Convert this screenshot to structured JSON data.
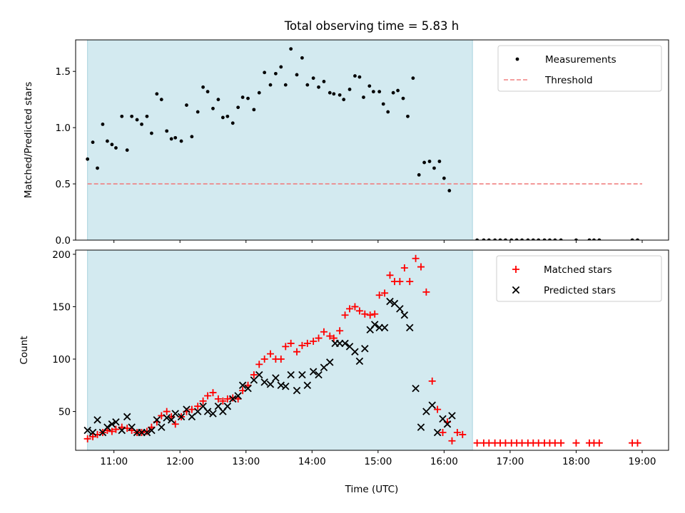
{
  "figure": {
    "title": "Total observing time = 5.83 h",
    "xlabel": "Time (UTC)"
  },
  "chart_data": [
    {
      "type": "scatter",
      "ylabel": "Matched/Predicted stars",
      "xlim": [
        10.42,
        19.4
      ],
      "ylim": [
        0,
        1.78
      ],
      "yticks": [
        0.0,
        0.5,
        1.0,
        1.5
      ],
      "ytick_labels": [
        "0.0",
        "0.5",
        "1.0",
        "1.5"
      ],
      "shaded_span": {
        "x_start": 10.6,
        "x_end": 16.43,
        "color": "#d3eaf0"
      },
      "legend": {
        "position": "top-right",
        "entries": [
          "Measurements",
          "Threshold"
        ]
      },
      "threshold": {
        "name": "Threshold",
        "y": 0.5,
        "x_start": 10.6,
        "x_end": 19.0,
        "color": "#f08080"
      },
      "series": [
        {
          "name": "Measurements",
          "color": "#000000",
          "points": [
            [
              10.6,
              0.72
            ],
            [
              10.68,
              0.87
            ],
            [
              10.75,
              0.64
            ],
            [
              10.83,
              1.03
            ],
            [
              10.9,
              0.88
            ],
            [
              10.97,
              0.85
            ],
            [
              11.03,
              0.82
            ],
            [
              11.12,
              1.1
            ],
            [
              11.2,
              0.8
            ],
            [
              11.27,
              1.1
            ],
            [
              11.35,
              1.07
            ],
            [
              11.42,
              1.03
            ],
            [
              11.5,
              1.1
            ],
            [
              11.57,
              0.95
            ],
            [
              11.65,
              1.3
            ],
            [
              11.72,
              1.25
            ],
            [
              11.8,
              0.97
            ],
            [
              11.87,
              0.9
            ],
            [
              11.93,
              0.91
            ],
            [
              12.02,
              0.88
            ],
            [
              12.1,
              1.2
            ],
            [
              12.18,
              0.92
            ],
            [
              12.27,
              1.14
            ],
            [
              12.35,
              1.36
            ],
            [
              12.42,
              1.32
            ],
            [
              12.5,
              1.17
            ],
            [
              12.58,
              1.25
            ],
            [
              12.65,
              1.09
            ],
            [
              12.72,
              1.1
            ],
            [
              12.8,
              1.04
            ],
            [
              12.88,
              1.18
            ],
            [
              12.95,
              1.27
            ],
            [
              13.03,
              1.26
            ],
            [
              13.12,
              1.16
            ],
            [
              13.2,
              1.31
            ],
            [
              13.28,
              1.49
            ],
            [
              13.37,
              1.38
            ],
            [
              13.45,
              1.48
            ],
            [
              13.53,
              1.54
            ],
            [
              13.6,
              1.38
            ],
            [
              13.68,
              1.7
            ],
            [
              13.77,
              1.47
            ],
            [
              13.85,
              1.62
            ],
            [
              13.93,
              1.38
            ],
            [
              14.02,
              1.44
            ],
            [
              14.1,
              1.36
            ],
            [
              14.18,
              1.41
            ],
            [
              14.27,
              1.31
            ],
            [
              14.33,
              1.3
            ],
            [
              14.42,
              1.29
            ],
            [
              14.48,
              1.25
            ],
            [
              14.57,
              1.34
            ],
            [
              14.65,
              1.46
            ],
            [
              14.72,
              1.45
            ],
            [
              14.78,
              1.27
            ],
            [
              14.87,
              1.37
            ],
            [
              14.93,
              1.32
            ],
            [
              15.02,
              1.32
            ],
            [
              15.08,
              1.21
            ],
            [
              15.15,
              1.14
            ],
            [
              15.23,
              1.31
            ],
            [
              15.3,
              1.33
            ],
            [
              15.38,
              1.26
            ],
            [
              15.45,
              1.1
            ],
            [
              15.53,
              1.44
            ],
            [
              15.62,
              0.58
            ],
            [
              15.7,
              0.69
            ],
            [
              15.78,
              0.7
            ],
            [
              15.85,
              0.64
            ],
            [
              15.93,
              0.7
            ],
            [
              16.0,
              0.55
            ],
            [
              16.08,
              0.44
            ],
            [
              16.5,
              0
            ],
            [
              16.6,
              0
            ],
            [
              16.68,
              0
            ],
            [
              16.77,
              0
            ],
            [
              16.85,
              0
            ],
            [
              16.93,
              0
            ],
            [
              17.02,
              0
            ],
            [
              17.1,
              0
            ],
            [
              17.18,
              0
            ],
            [
              17.27,
              0
            ],
            [
              17.35,
              0
            ],
            [
              17.43,
              0
            ],
            [
              17.52,
              0
            ],
            [
              17.6,
              0
            ],
            [
              17.68,
              0
            ],
            [
              17.77,
              0
            ],
            [
              18.0,
              0
            ],
            [
              18.2,
              0
            ],
            [
              18.27,
              0
            ],
            [
              18.35,
              0
            ],
            [
              18.85,
              0
            ],
            [
              18.93,
              0
            ]
          ]
        }
      ]
    },
    {
      "type": "scatter",
      "ylabel": "Count",
      "xlim": [
        10.42,
        19.4
      ],
      "ylim": [
        13,
        204
      ],
      "yticks": [
        50,
        100,
        150,
        200
      ],
      "ytick_labels": [
        "50",
        "100",
        "150",
        "200"
      ],
      "xticks": [
        11,
        12,
        13,
        14,
        15,
        16,
        17,
        18,
        19
      ],
      "xtick_labels": [
        "11:00",
        "12:00",
        "13:00",
        "14:00",
        "15:00",
        "16:00",
        "17:00",
        "18:00",
        "19:00"
      ],
      "shaded_span": {
        "x_start": 10.6,
        "x_end": 16.43,
        "color": "#d3eaf0"
      },
      "legend": {
        "position": "top-right",
        "entries": [
          "Matched stars",
          "Predicted stars"
        ]
      },
      "series": [
        {
          "name": "Matched stars",
          "marker": "plus",
          "color": "#ff0000",
          "points": [
            [
              10.6,
              24
            ],
            [
              10.68,
              26
            ],
            [
              10.75,
              28
            ],
            [
              10.83,
              30
            ],
            [
              10.9,
              32
            ],
            [
              10.97,
              31
            ],
            [
              11.03,
              33
            ],
            [
              11.12,
              35
            ],
            [
              11.2,
              34
            ],
            [
              11.27,
              32
            ],
            [
              11.35,
              30
            ],
            [
              11.42,
              30
            ],
            [
              11.5,
              31
            ],
            [
              11.57,
              35
            ],
            [
              11.65,
              40
            ],
            [
              11.72,
              46
            ],
            [
              11.8,
              50
            ],
            [
              11.87,
              45
            ],
            [
              11.93,
              38
            ],
            [
              12.02,
              45
            ],
            [
              12.1,
              50
            ],
            [
              12.18,
              52
            ],
            [
              12.27,
              55
            ],
            [
              12.35,
              60
            ],
            [
              12.42,
              65
            ],
            [
              12.5,
              68
            ],
            [
              12.58,
              62
            ],
            [
              12.65,
              60
            ],
            [
              12.72,
              62
            ],
            [
              12.8,
              63
            ],
            [
              12.88,
              62
            ],
            [
              12.95,
              70
            ],
            [
              13.03,
              75
            ],
            [
              13.12,
              85
            ],
            [
              13.2,
              95
            ],
            [
              13.28,
              100
            ],
            [
              13.37,
              105
            ],
            [
              13.45,
              100
            ],
            [
              13.53,
              100
            ],
            [
              13.6,
              112
            ],
            [
              13.68,
              115
            ],
            [
              13.77,
              107
            ],
            [
              13.85,
              113
            ],
            [
              13.93,
              115
            ],
            [
              14.02,
              117
            ],
            [
              14.1,
              120
            ],
            [
              14.18,
              126
            ],
            [
              14.27,
              122
            ],
            [
              14.33,
              120
            ],
            [
              14.42,
              127
            ],
            [
              14.5,
              142
            ],
            [
              14.57,
              148
            ],
            [
              14.65,
              150
            ],
            [
              14.72,
              146
            ],
            [
              14.8,
              143
            ],
            [
              14.88,
              142
            ],
            [
              14.95,
              143
            ],
            [
              15.02,
              161
            ],
            [
              15.1,
              163
            ],
            [
              15.18,
              180
            ],
            [
              15.25,
              174
            ],
            [
              15.33,
              174
            ],
            [
              15.4,
              187
            ],
            [
              15.48,
              174
            ],
            [
              15.57,
              196
            ],
            [
              15.65,
              188
            ],
            [
              15.73,
              164
            ],
            [
              15.82,
              79
            ],
            [
              15.9,
              52
            ],
            [
              15.98,
              30
            ],
            [
              16.05,
              40
            ],
            [
              16.12,
              22
            ],
            [
              16.2,
              30
            ],
            [
              16.28,
              28
            ],
            [
              16.5,
              20
            ],
            [
              16.6,
              20
            ],
            [
              16.68,
              20
            ],
            [
              16.77,
              20
            ],
            [
              16.85,
              20
            ],
            [
              16.93,
              20
            ],
            [
              17.02,
              20
            ],
            [
              17.1,
              20
            ],
            [
              17.18,
              20
            ],
            [
              17.27,
              20
            ],
            [
              17.35,
              20
            ],
            [
              17.43,
              20
            ],
            [
              17.52,
              20
            ],
            [
              17.6,
              20
            ],
            [
              17.68,
              20
            ],
            [
              17.77,
              20
            ],
            [
              18.0,
              20
            ],
            [
              18.2,
              20
            ],
            [
              18.27,
              20
            ],
            [
              18.35,
              20
            ],
            [
              18.85,
              20
            ],
            [
              18.93,
              20
            ]
          ]
        },
        {
          "name": "Predicted stars",
          "marker": "x",
          "color": "#000000",
          "points": [
            [
              10.6,
              32
            ],
            [
              10.68,
              30
            ],
            [
              10.75,
              42
            ],
            [
              10.83,
              30
            ],
            [
              10.9,
              35
            ],
            [
              10.97,
              38
            ],
            [
              11.03,
              40
            ],
            [
              11.12,
              32
            ],
            [
              11.2,
              45
            ],
            [
              11.27,
              35
            ],
            [
              11.35,
              30
            ],
            [
              11.42,
              30
            ],
            [
              11.5,
              30
            ],
            [
              11.57,
              32
            ],
            [
              11.65,
              42
            ],
            [
              11.72,
              35
            ],
            [
              11.8,
              44
            ],
            [
              11.87,
              42
            ],
            [
              11.93,
              48
            ],
            [
              12.02,
              45
            ],
            [
              12.1,
              52
            ],
            [
              12.18,
              45
            ],
            [
              12.27,
              50
            ],
            [
              12.35,
              55
            ],
            [
              12.42,
              50
            ],
            [
              12.5,
              48
            ],
            [
              12.58,
              55
            ],
            [
              12.65,
              50
            ],
            [
              12.72,
              55
            ],
            [
              12.8,
              62
            ],
            [
              12.88,
              65
            ],
            [
              12.95,
              75
            ],
            [
              13.03,
              72
            ],
            [
              13.12,
              80
            ],
            [
              13.2,
              85
            ],
            [
              13.28,
              78
            ],
            [
              13.37,
              76
            ],
            [
              13.45,
              82
            ],
            [
              13.53,
              75
            ],
            [
              13.6,
              74
            ],
            [
              13.68,
              85
            ],
            [
              13.77,
              70
            ],
            [
              13.85,
              85
            ],
            [
              13.93,
              75
            ],
            [
              14.02,
              88
            ],
            [
              14.1,
              85
            ],
            [
              14.18,
              92
            ],
            [
              14.27,
              97
            ],
            [
              14.35,
              115
            ],
            [
              14.42,
              115
            ],
            [
              14.5,
              115
            ],
            [
              14.57,
              112
            ],
            [
              14.65,
              107
            ],
            [
              14.72,
              98
            ],
            [
              14.8,
              110
            ],
            [
              14.88,
              128
            ],
            [
              14.95,
              133
            ],
            [
              15.02,
              130
            ],
            [
              15.1,
              130
            ],
            [
              15.18,
              155
            ],
            [
              15.25,
              153
            ],
            [
              15.33,
              148
            ],
            [
              15.4,
              142
            ],
            [
              15.48,
              130
            ],
            [
              15.57,
              72
            ],
            [
              15.65,
              35
            ],
            [
              15.73,
              50
            ],
            [
              15.82,
              56
            ],
            [
              15.9,
              30
            ],
            [
              15.98,
              43
            ],
            [
              16.05,
              38
            ],
            [
              16.12,
              46
            ]
          ]
        }
      ]
    }
  ]
}
